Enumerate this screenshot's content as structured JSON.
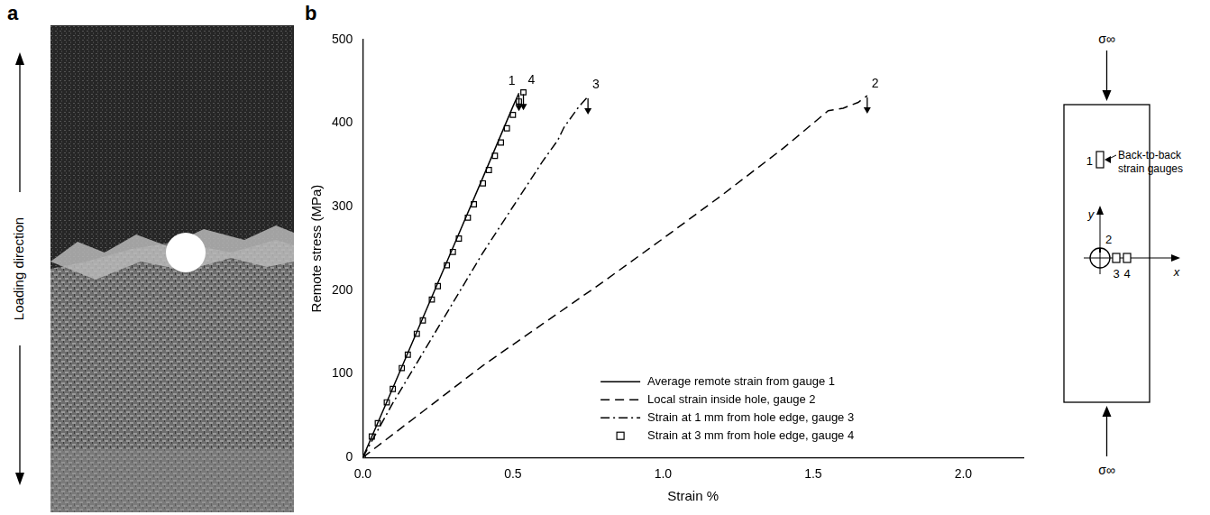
{
  "panel_a": {
    "letter": "a",
    "label": "Loading direction"
  },
  "chart_data": {
    "type": "line",
    "letter": "b",
    "x_label": "Strain %",
    "y_label": "Remote stress (MPa)",
    "xlim": [
      0,
      2.2
    ],
    "xticks": [
      {
        "value": 0,
        "label": "0.0"
      },
      0.5,
      {
        "value": 1,
        "label": "1.0"
      },
      1.5,
      {
        "value": 2,
        "label": "2.0"
      }
    ],
    "ylim": [
      0,
      500
    ],
    "yticks": [
      0,
      100,
      200,
      300,
      400,
      500
    ],
    "grid": false,
    "legend": "lower right",
    "series": [
      {
        "name": "Average remote strain from gauge 1",
        "label": "1",
        "color": "#000000",
        "line_style": "solid",
        "marker": "none",
        "x": [
          0,
          0.1,
          0.2,
          0.3,
          0.4,
          0.5,
          0.52
        ],
        "values": [
          0,
          83,
          167,
          251,
          335,
          420,
          436
        ]
      },
      {
        "name": "Local strain inside hole, gauge 2",
        "label": "2",
        "color": "#000000",
        "line_style": "dashed",
        "marker": "none",
        "x": [
          0,
          0.2,
          0.4,
          0.6,
          0.8,
          1.0,
          1.2,
          1.4,
          1.5,
          1.55,
          1.6,
          1.65,
          1.68
        ],
        "values": [
          0,
          55,
          110,
          160,
          210,
          262,
          315,
          370,
          400,
          415,
          418,
          425,
          433
        ]
      },
      {
        "name": "Strain at 1 mm from hole edge, gauge 3",
        "label": "3",
        "color": "#000000",
        "line_style": "dashdot",
        "marker": "none",
        "x": [
          0,
          0.1,
          0.2,
          0.3,
          0.4,
          0.5,
          0.6,
          0.65,
          0.67,
          0.7,
          0.72,
          0.75
        ],
        "values": [
          0,
          65,
          125,
          185,
          245,
          300,
          355,
          380,
          395,
          410,
          420,
          432
        ]
      },
      {
        "name": "Strain at 3 mm from hole edge, gauge 4",
        "label": "4",
        "color": "#000000",
        "line_style": "none",
        "marker": "square",
        "x": [
          0,
          0.03,
          0.05,
          0.08,
          0.1,
          0.13,
          0.15,
          0.18,
          0.2,
          0.23,
          0.25,
          0.28,
          0.3,
          0.32,
          0.35,
          0.37,
          0.4,
          0.42,
          0.44,
          0.46,
          0.48,
          0.5,
          0.52,
          0.535
        ],
        "values": [
          0,
          25,
          41,
          66,
          82,
          107,
          123,
          148,
          164,
          189,
          205,
          230,
          246,
          262,
          287,
          303,
          328,
          344,
          361,
          377,
          394,
          410,
          426,
          437
        ]
      }
    ],
    "inset": {
      "top_load": "σ∞",
      "bottom_load": "σ∞",
      "note": "Back-to-back strain gauges",
      "gauges": [
        "1",
        "2",
        "3",
        "4"
      ],
      "axes": [
        "x",
        "y"
      ]
    }
  }
}
